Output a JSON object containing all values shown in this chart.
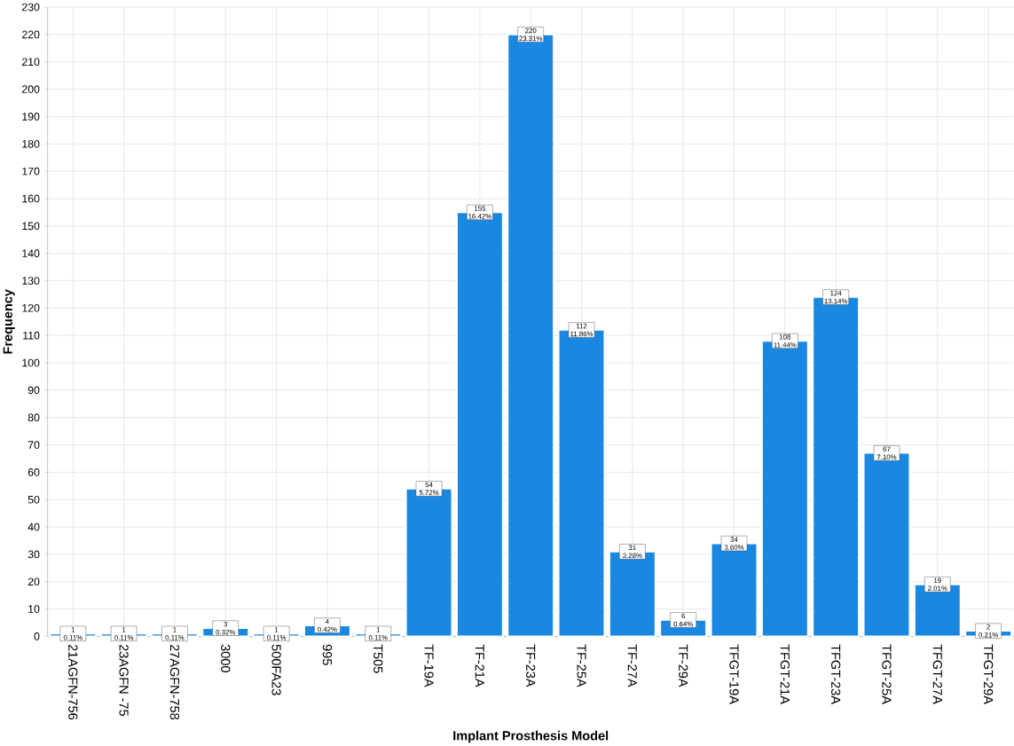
{
  "chart_data": {
    "type": "bar",
    "xlabel": "Implant Prosthesis Model",
    "ylabel": "Frequency",
    "categories": [
      "21AGFN-756",
      "23AGFN -75",
      "27AGFN-758",
      "3000",
      "500FA23",
      "995",
      "T505",
      "TF-19A",
      "TF-21A",
      "TF-23A",
      "TF-25A",
      "TF-27A",
      "TF-29A",
      "TFGT-19A",
      "TFGT-21A",
      "TFGT-23A",
      "TFGT-25A",
      "TFGT-27A",
      "TFGT-29A"
    ],
    "values": [
      1,
      1,
      1,
      3,
      1,
      4,
      1,
      54,
      155,
      220,
      112,
      31,
      6,
      34,
      108,
      124,
      67,
      19,
      2
    ],
    "value_labels": [
      "1 0.11%",
      "1 0.11%",
      "1 0.11%",
      "3 0.32%",
      "1 0.11%",
      "4 0.42%",
      "1 0.11%",
      "54 5.72%",
      "155 16.42%",
      "220 23.31%",
      "112 11.86%",
      "31 3.28%",
      "6 0.64%",
      "34 3.60%",
      "108 11.44%",
      "124 13.14%",
      "67 7.10%",
      "19 2.01%",
      "2 0.21%"
    ],
    "color": "#1a87e0",
    "ylim": [
      0,
      230
    ],
    "yticks": [
      0,
      10,
      20,
      30,
      40,
      50,
      60,
      70,
      80,
      90,
      100,
      110,
      120,
      130,
      140,
      150,
      160,
      170,
      180,
      190,
      200,
      210,
      220,
      230
    ],
    "grid": true
  }
}
